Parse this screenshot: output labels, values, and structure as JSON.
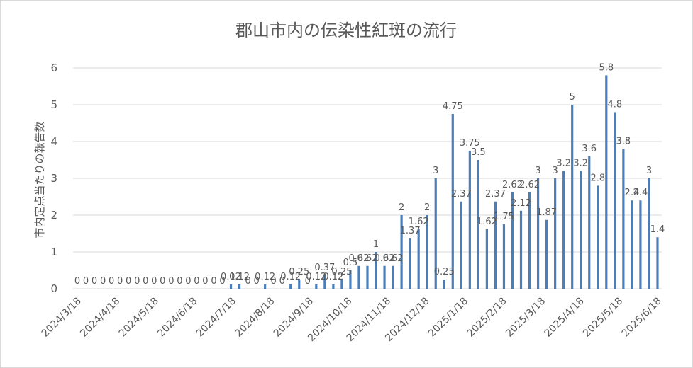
{
  "chart_data": {
    "type": "bar",
    "title": "郡山市内の伝染性紅斑の流行",
    "xlabel": "",
    "ylabel": "市内定点当たりの報告数",
    "ylim": [
      0,
      6
    ],
    "yticks": [
      "0",
      "1",
      "2",
      "3",
      "4",
      "5",
      "6"
    ],
    "x_tick_labels": [
      "2024/3/18",
      "2024/4/18",
      "2024/5/18",
      "2024/6/18",
      "2024/7/18",
      "2024/8/18",
      "2024/9/18",
      "2024/10/18",
      "2024/11/18",
      "2024/12/18",
      "2025/1/18",
      "2025/2/18",
      "2025/3/18",
      "2025/4/18",
      "2025/5/18",
      "2025/6/18"
    ],
    "grid": true,
    "color": "#4a7ebb",
    "values": [
      0,
      0,
      0,
      0,
      0,
      0,
      0,
      0,
      0,
      0,
      0,
      0,
      0,
      0,
      0,
      0,
      0,
      0,
      0.12,
      0.12,
      0,
      0,
      0.12,
      0,
      0,
      0.12,
      0.25,
      0,
      0.12,
      0.37,
      0.12,
      0.25,
      0.5,
      0.62,
      0.62,
      1,
      0.62,
      0.62,
      2,
      1.37,
      1.62,
      2,
      3,
      0.25,
      4.75,
      2.37,
      3.75,
      3.5,
      1.62,
      2.37,
      1.75,
      2.62,
      2.12,
      2.62,
      3,
      1.87,
      3,
      3.2,
      5,
      3.2,
      3.6,
      2.8,
      5.8,
      4.8,
      3.8,
      2.4,
      2.4,
      3,
      1.4
    ],
    "data_labels": [
      "0",
      "0",
      "0",
      "0",
      "0",
      "0",
      "0",
      "0",
      "0",
      "0",
      "0",
      "0",
      "0",
      "0",
      "0",
      "0",
      "0",
      "0",
      "0.12",
      "0.12",
      "0",
      "0",
      "0.12",
      "0",
      "0",
      "0.12",
      "0.25",
      "0",
      "0.12",
      "0.37",
      "0.12",
      "0.25",
      "0.5",
      "0.62",
      "0.62",
      "1",
      "0.62",
      "0.62",
      "2",
      "1.37",
      "1.62",
      "2",
      "3",
      "0.25",
      "4.75",
      "2.37",
      "3.75",
      "3.5",
      "1.62",
      "2.37",
      "1.75",
      "2.62",
      "2.12",
      "2.62",
      "3",
      "1.87",
      "3",
      "3.2",
      "5",
      "3.2",
      "3.6",
      "2.8",
      "5.8",
      "4.8",
      "3.8",
      "2.4",
      "2.4",
      "3",
      "1.4"
    ]
  }
}
